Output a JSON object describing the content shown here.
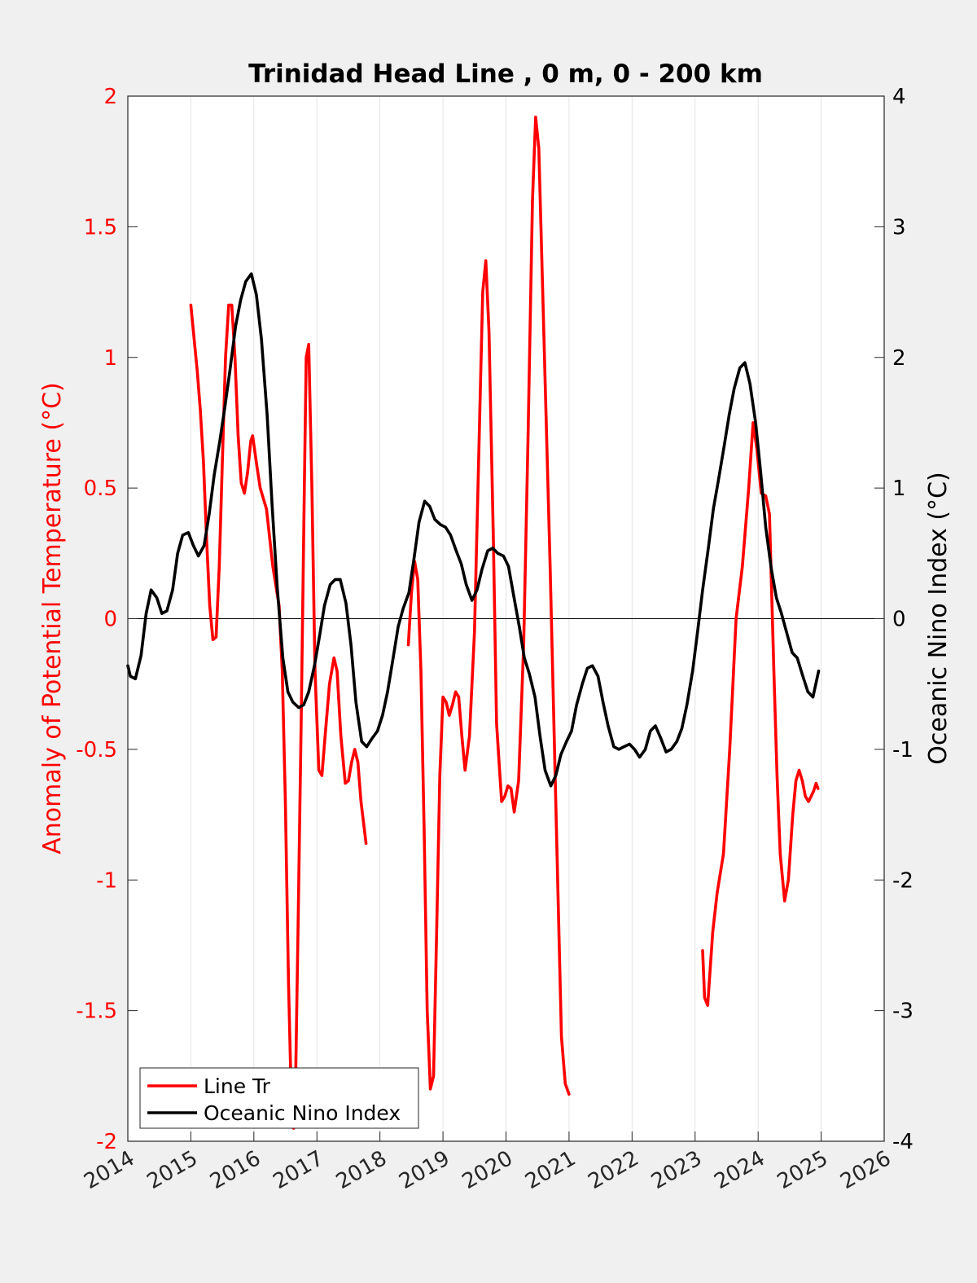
{
  "chart_data": {
    "type": "line",
    "title": "Trinidad Head Line , 0 m, 0 - 200 km",
    "ylabel_left": "Anomaly of Potential Temperature (°C)",
    "ylabel_right": "Oceanic Nino Index (°C)",
    "xlim": [
      2014,
      2026
    ],
    "ylim_left": [
      -2,
      2
    ],
    "ylim_right": [
      -4,
      4
    ],
    "xticks": [
      "2014",
      "2015",
      "2016",
      "2017",
      "2018",
      "2019",
      "2020",
      "2021",
      "2022",
      "2023",
      "2024",
      "2025",
      "2026"
    ],
    "yticks_left": [
      "2",
      "1.5",
      "1",
      "0.5",
      "0",
      "-0.5",
      "-1",
      "-1.5",
      "-2"
    ],
    "yticks_right": [
      "4",
      "3",
      "2",
      "1",
      "0",
      "-1",
      "-2",
      "-3",
      "-4"
    ],
    "grid": "vertical",
    "zero_line": true,
    "legend_position": "bottom-left",
    "colors": {
      "line_tr": "#ff0000",
      "oni": "#000000",
      "left_axis": "#ff0000",
      "right_axis": "#000000"
    },
    "series": [
      {
        "name": "Line Tr",
        "axis": "left",
        "segments": [
          [
            [
              2015.0,
              1.2
            ],
            [
              2015.1,
              0.95
            ],
            [
              2015.15,
              0.8
            ],
            [
              2015.2,
              0.6
            ],
            [
              2015.25,
              0.3
            ],
            [
              2015.3,
              0.05
            ],
            [
              2015.35,
              -0.08
            ],
            [
              2015.4,
              -0.07
            ],
            [
              2015.45,
              0.2
            ],
            [
              2015.5,
              0.6
            ],
            [
              2015.55,
              1.0
            ],
            [
              2015.6,
              1.2
            ],
            [
              2015.65,
              1.2
            ],
            [
              2015.7,
              1.0
            ],
            [
              2015.75,
              0.7
            ],
            [
              2015.8,
              0.52
            ],
            [
              2015.85,
              0.48
            ],
            [
              2015.9,
              0.56
            ],
            [
              2015.95,
              0.68
            ],
            [
              2015.98,
              0.7
            ],
            [
              2016.05,
              0.58
            ],
            [
              2016.1,
              0.5
            ],
            [
              2016.2,
              0.42
            ],
            [
              2016.3,
              0.2
            ],
            [
              2016.4,
              0.05
            ],
            [
              2016.45,
              -0.2
            ],
            [
              2016.5,
              -0.7
            ],
            [
              2016.55,
              -1.4
            ],
            [
              2016.6,
              -1.9
            ],
            [
              2016.63,
              -1.95
            ],
            [
              2016.66,
              -1.8
            ],
            [
              2016.7,
              -1.2
            ],
            [
              2016.75,
              -0.4
            ],
            [
              2016.8,
              0.5
            ],
            [
              2016.83,
              1.0
            ],
            [
              2016.87,
              1.05
            ],
            [
              2016.92,
              0.5
            ],
            [
              2016.97,
              -0.2
            ],
            [
              2017.03,
              -0.58
            ],
            [
              2017.08,
              -0.6
            ],
            [
              2017.13,
              -0.45
            ],
            [
              2017.2,
              -0.25
            ],
            [
              2017.27,
              -0.15
            ],
            [
              2017.32,
              -0.2
            ],
            [
              2017.38,
              -0.45
            ],
            [
              2017.45,
              -0.63
            ],
            [
              2017.5,
              -0.62
            ],
            [
              2017.55,
              -0.55
            ],
            [
              2017.6,
              -0.5
            ],
            [
              2017.65,
              -0.55
            ],
            [
              2017.7,
              -0.7
            ],
            [
              2017.78,
              -0.86
            ]
          ],
          [
            [
              2018.45,
              -0.1
            ],
            [
              2018.5,
              0.1
            ],
            [
              2018.55,
              0.22
            ],
            [
              2018.6,
              0.15
            ],
            [
              2018.65,
              -0.2
            ],
            [
              2018.7,
              -0.8
            ],
            [
              2018.75,
              -1.5
            ],
            [
              2018.8,
              -1.8
            ],
            [
              2018.85,
              -1.75
            ],
            [
              2018.9,
              -1.2
            ],
            [
              2018.95,
              -0.6
            ],
            [
              2019.0,
              -0.3
            ],
            [
              2019.05,
              -0.32
            ],
            [
              2019.1,
              -0.37
            ],
            [
              2019.15,
              -0.33
            ],
            [
              2019.2,
              -0.28
            ],
            [
              2019.25,
              -0.3
            ],
            [
              2019.3,
              -0.45
            ],
            [
              2019.35,
              -0.58
            ],
            [
              2019.42,
              -0.45
            ],
            [
              2019.5,
              -0.05
            ],
            [
              2019.58,
              0.75
            ],
            [
              2019.63,
              1.25
            ],
            [
              2019.68,
              1.37
            ],
            [
              2019.73,
              1.1
            ],
            [
              2019.8,
              0.3
            ],
            [
              2019.85,
              -0.4
            ],
            [
              2019.93,
              -0.7
            ],
            [
              2019.98,
              -0.68
            ],
            [
              2020.03,
              -0.64
            ],
            [
              2020.08,
              -0.65
            ],
            [
              2020.13,
              -0.74
            ],
            [
              2020.2,
              -0.62
            ],
            [
              2020.28,
              -0.1
            ],
            [
              2020.35,
              0.7
            ],
            [
              2020.42,
              1.6
            ],
            [
              2020.47,
              1.92
            ],
            [
              2020.52,
              1.8
            ],
            [
              2020.6,
              1.1
            ],
            [
              2020.7,
              0.2
            ],
            [
              2020.8,
              -0.8
            ],
            [
              2020.88,
              -1.6
            ],
            [
              2020.94,
              -1.78
            ],
            [
              2021.0,
              -1.82
            ]
          ],
          [
            [
              2023.12,
              -1.27
            ],
            [
              2023.15,
              -1.45
            ],
            [
              2023.2,
              -1.48
            ],
            [
              2023.28,
              -1.2
            ],
            [
              2023.35,
              -1.05
            ],
            [
              2023.45,
              -0.9
            ],
            [
              2023.55,
              -0.5
            ],
            [
              2023.65,
              0.0
            ],
            [
              2023.75,
              0.2
            ],
            [
              2023.85,
              0.5
            ],
            [
              2023.92,
              0.75
            ],
            [
              2023.98,
              0.65
            ],
            [
              2024.05,
              0.48
            ],
            [
              2024.12,
              0.47
            ],
            [
              2024.18,
              0.4
            ],
            [
              2024.25,
              -0.2
            ],
            [
              2024.3,
              -0.6
            ],
            [
              2024.35,
              -0.9
            ],
            [
              2024.42,
              -1.08
            ],
            [
              2024.48,
              -1.0
            ],
            [
              2024.55,
              -0.75
            ],
            [
              2024.6,
              -0.62
            ],
            [
              2024.65,
              -0.58
            ],
            [
              2024.7,
              -0.62
            ],
            [
              2024.75,
              -0.68
            ],
            [
              2024.8,
              -0.7
            ],
            [
              2024.88,
              -0.66
            ],
            [
              2024.92,
              -0.63
            ],
            [
              2024.95,
              -0.65
            ]
          ]
        ]
      },
      {
        "name": "Oceanic Nino Index",
        "axis": "right",
        "segments": [
          [
            [
              2014.0,
              -0.36
            ],
            [
              2014.04,
              -0.44
            ],
            [
              2014.12,
              -0.46
            ],
            [
              2014.21,
              -0.28
            ],
            [
              2014.29,
              0.04
            ],
            [
              2014.37,
              0.22
            ],
            [
              2014.46,
              0.16
            ],
            [
              2014.54,
              0.04
            ],
            [
              2014.62,
              0.06
            ],
            [
              2014.71,
              0.22
            ],
            [
              2014.79,
              0.5
            ],
            [
              2014.87,
              0.64
            ],
            [
              2014.96,
              0.66
            ],
            [
              2015.04,
              0.56
            ],
            [
              2015.12,
              0.48
            ],
            [
              2015.21,
              0.56
            ],
            [
              2015.29,
              0.8
            ],
            [
              2015.37,
              1.1
            ],
            [
              2015.46,
              1.36
            ],
            [
              2015.54,
              1.62
            ],
            [
              2015.62,
              1.9
            ],
            [
              2015.71,
              2.24
            ],
            [
              2015.79,
              2.44
            ],
            [
              2015.87,
              2.58
            ],
            [
              2015.96,
              2.64
            ],
            [
              2016.04,
              2.48
            ],
            [
              2016.12,
              2.14
            ],
            [
              2016.21,
              1.56
            ],
            [
              2016.29,
              0.86
            ],
            [
              2016.37,
              0.24
            ],
            [
              2016.46,
              -0.3
            ],
            [
              2016.54,
              -0.56
            ],
            [
              2016.62,
              -0.64
            ],
            [
              2016.71,
              -0.68
            ],
            [
              2016.79,
              -0.66
            ],
            [
              2016.87,
              -0.56
            ],
            [
              2016.96,
              -0.36
            ],
            [
              2017.04,
              -0.14
            ],
            [
              2017.12,
              0.1
            ],
            [
              2017.21,
              0.26
            ],
            [
              2017.29,
              0.3
            ],
            [
              2017.37,
              0.3
            ],
            [
              2017.46,
              0.12
            ],
            [
              2017.54,
              -0.2
            ],
            [
              2017.62,
              -0.64
            ],
            [
              2017.71,
              -0.94
            ],
            [
              2017.79,
              -0.98
            ],
            [
              2017.87,
              -0.92
            ],
            [
              2017.96,
              -0.86
            ],
            [
              2018.04,
              -0.74
            ],
            [
              2018.12,
              -0.56
            ],
            [
              2018.21,
              -0.3
            ],
            [
              2018.29,
              -0.06
            ],
            [
              2018.37,
              0.08
            ],
            [
              2018.46,
              0.2
            ],
            [
              2018.54,
              0.46
            ],
            [
              2018.62,
              0.74
            ],
            [
              2018.71,
              0.9
            ],
            [
              2018.79,
              0.86
            ],
            [
              2018.87,
              0.76
            ],
            [
              2018.96,
              0.72
            ],
            [
              2019.04,
              0.7
            ],
            [
              2019.12,
              0.64
            ],
            [
              2019.21,
              0.52
            ],
            [
              2019.29,
              0.42
            ],
            [
              2019.37,
              0.26
            ],
            [
              2019.46,
              0.14
            ],
            [
              2019.54,
              0.22
            ],
            [
              2019.62,
              0.38
            ],
            [
              2019.71,
              0.52
            ],
            [
              2019.79,
              0.54
            ],
            [
              2019.87,
              0.5
            ],
            [
              2019.96,
              0.48
            ],
            [
              2020.04,
              0.4
            ],
            [
              2020.12,
              0.18
            ],
            [
              2020.21,
              -0.06
            ],
            [
              2020.29,
              -0.3
            ],
            [
              2020.37,
              -0.42
            ],
            [
              2020.46,
              -0.6
            ],
            [
              2020.54,
              -0.9
            ],
            [
              2020.62,
              -1.16
            ],
            [
              2020.71,
              -1.28
            ],
            [
              2020.79,
              -1.2
            ],
            [
              2020.87,
              -1.04
            ],
            [
              2020.96,
              -0.94
            ],
            [
              2021.04,
              -0.86
            ],
            [
              2021.12,
              -0.66
            ],
            [
              2021.21,
              -0.5
            ],
            [
              2021.29,
              -0.38
            ],
            [
              2021.37,
              -0.36
            ],
            [
              2021.46,
              -0.44
            ],
            [
              2021.54,
              -0.64
            ],
            [
              2021.62,
              -0.82
            ],
            [
              2021.71,
              -0.98
            ],
            [
              2021.79,
              -1.0
            ],
            [
              2021.87,
              -0.98
            ],
            [
              2021.96,
              -0.96
            ],
            [
              2022.04,
              -1.0
            ],
            [
              2022.12,
              -1.06
            ],
            [
              2022.21,
              -1.0
            ],
            [
              2022.29,
              -0.86
            ],
            [
              2022.37,
              -0.82
            ],
            [
              2022.46,
              -0.92
            ],
            [
              2022.54,
              -1.02
            ],
            [
              2022.62,
              -1.0
            ],
            [
              2022.71,
              -0.94
            ],
            [
              2022.79,
              -0.84
            ],
            [
              2022.87,
              -0.66
            ],
            [
              2022.96,
              -0.4
            ],
            [
              2023.04,
              -0.1
            ],
            [
              2023.12,
              0.22
            ],
            [
              2023.21,
              0.54
            ],
            [
              2023.29,
              0.84
            ],
            [
              2023.37,
              1.06
            ],
            [
              2023.46,
              1.32
            ],
            [
              2023.54,
              1.56
            ],
            [
              2023.62,
              1.76
            ],
            [
              2023.71,
              1.92
            ],
            [
              2023.79,
              1.96
            ],
            [
              2023.87,
              1.8
            ],
            [
              2023.96,
              1.5
            ],
            [
              2024.04,
              1.12
            ],
            [
              2024.12,
              0.7
            ],
            [
              2024.21,
              0.38
            ],
            [
              2024.29,
              0.16
            ],
            [
              2024.37,
              0.04
            ],
            [
              2024.46,
              -0.12
            ],
            [
              2024.54,
              -0.26
            ],
            [
              2024.62,
              -0.3
            ],
            [
              2024.71,
              -0.44
            ],
            [
              2024.79,
              -0.56
            ],
            [
              2024.87,
              -0.6
            ],
            [
              2024.96,
              -0.4
            ]
          ]
        ]
      }
    ]
  }
}
